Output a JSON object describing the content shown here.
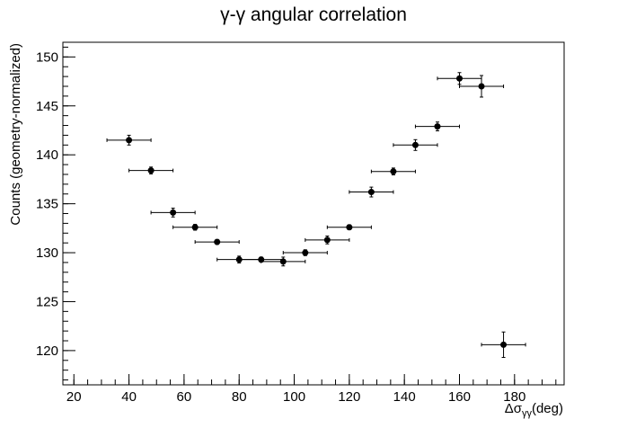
{
  "chart_data": {
    "type": "scatter",
    "title": "γ-γ angular correlation",
    "xlabel_main": "Δσ",
    "xlabel_sub": "γγ",
    "xlabel_unit": "(deg)",
    "ylabel": "Counts (geometry-normalized)",
    "xlim": [
      16,
      198
    ],
    "ylim": [
      116.5,
      151.5
    ],
    "x_ticks": [
      20,
      40,
      60,
      80,
      100,
      120,
      140,
      160,
      180
    ],
    "y_ticks": [
      120,
      125,
      130,
      135,
      140,
      145,
      150
    ],
    "x_minor_step": 5,
    "y_minor_step": 1,
    "x_error": 8,
    "grid": false,
    "legend": false,
    "points": [
      {
        "x": 40,
        "y": 141.5,
        "yerr": 0.5
      },
      {
        "x": 48,
        "y": 138.4,
        "yerr": 0.35
      },
      {
        "x": 56,
        "y": 134.1,
        "yerr": 0.45
      },
      {
        "x": 64,
        "y": 132.6,
        "yerr": 0.3
      },
      {
        "x": 72,
        "y": 131.1,
        "yerr": 0.25
      },
      {
        "x": 80,
        "y": 129.3,
        "yerr": 0.35
      },
      {
        "x": 88,
        "y": 129.3,
        "yerr": 0.25
      },
      {
        "x": 96,
        "y": 129.1,
        "yerr": 0.45
      },
      {
        "x": 104,
        "y": 130.0,
        "yerr": 0.3
      },
      {
        "x": 112,
        "y": 131.3,
        "yerr": 0.4
      },
      {
        "x": 120,
        "y": 132.6,
        "yerr": 0.25
      },
      {
        "x": 128,
        "y": 136.2,
        "yerr": 0.5
      },
      {
        "x": 136,
        "y": 138.3,
        "yerr": 0.35
      },
      {
        "x": 144,
        "y": 141.0,
        "yerr": 0.55
      },
      {
        "x": 152,
        "y": 142.9,
        "yerr": 0.45
      },
      {
        "x": 160,
        "y": 147.8,
        "yerr": 0.6
      },
      {
        "x": 168,
        "y": 147.0,
        "yerr": 1.1
      },
      {
        "x": 176,
        "y": 120.6,
        "yerr": 1.3
      }
    ]
  }
}
